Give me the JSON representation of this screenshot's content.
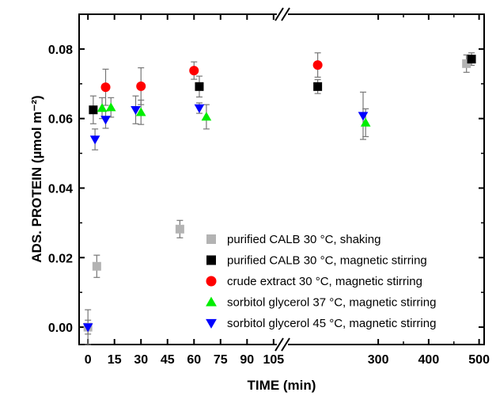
{
  "chart_data": {
    "type": "scatter",
    "xlabel": "TIME (min)",
    "ylabel": "ADS. PROTEIN (µmol m⁻²)",
    "x_axis": {
      "broken": true,
      "segments": [
        {
          "range": [
            -5,
            110
          ],
          "ticks": [
            0,
            15,
            30,
            45,
            60,
            75,
            90,
            105
          ]
        },
        {
          "range": [
            110,
            510
          ],
          "ticks": [
            300,
            400,
            500
          ]
        }
      ]
    },
    "ylim": [
      -0.005,
      0.09
    ],
    "yticks": [
      "0.00",
      "0.02",
      "0.04",
      "0.06",
      "0.08"
    ],
    "grid": false,
    "legend_position": "bottom-right",
    "series": [
      {
        "name": "purified CALB 30 °C, shaking",
        "marker": "square",
        "color": "#b3b3b3",
        "points": [
          {
            "x": 0,
            "y": 0.0,
            "err": 0.005
          },
          {
            "x": 5,
            "y": 0.0175,
            "err": 0.0032
          },
          {
            "x": 52,
            "y": 0.0282,
            "err": 0.0025
          },
          {
            "x": 475,
            "y": 0.0758,
            "err": 0.0025
          }
        ]
      },
      {
        "name": "purified CALB 30 °C, magnetic stirring",
        "marker": "square",
        "color": "#000000",
        "points": [
          {
            "x": 3,
            "y": 0.0625,
            "err": 0.004
          },
          {
            "x": 63,
            "y": 0.0692,
            "err": 0.003
          },
          {
            "x": 180,
            "y": 0.0692,
            "err": 0.002
          },
          {
            "x": 485,
            "y": 0.0771,
            "err": 0.0018
          }
        ]
      },
      {
        "name": "crude extract 30 °C, magnetic stirring",
        "marker": "circle",
        "color": "#ff0000",
        "points": [
          {
            "x": 10,
            "y": 0.069,
            "err": 0.0052
          },
          {
            "x": 30,
            "y": 0.0693,
            "err": 0.0053
          },
          {
            "x": 60,
            "y": 0.0738,
            "err": 0.0025
          },
          {
            "x": 180,
            "y": 0.0754,
            "err": 0.0035
          }
        ]
      },
      {
        "name": "sorbitol glycerol 37 °C, magnetic stirring",
        "marker": "triangle-up",
        "color": "#00ee00",
        "points": [
          {
            "x": 8,
            "y": 0.063,
            "err": 0.003
          },
          {
            "x": 13,
            "y": 0.0632,
            "err": 0.0028
          },
          {
            "x": 30,
            "y": 0.0618,
            "err": 0.0035
          },
          {
            "x": 67,
            "y": 0.0605,
            "err": 0.0035
          },
          {
            "x": 275,
            "y": 0.0588,
            "err": 0.004
          }
        ]
      },
      {
        "name": "sorbitol glycerol 45 °C, magnetic stirring",
        "marker": "triangle-down",
        "color": "#0000ff",
        "points": [
          {
            "x": 0,
            "y": 0.0,
            "err": 0.002
          },
          {
            "x": 4,
            "y": 0.054,
            "err": 0.003
          },
          {
            "x": 10,
            "y": 0.0597,
            "err": 0.0025
          },
          {
            "x": 27,
            "y": 0.0625,
            "err": 0.004
          },
          {
            "x": 63,
            "y": 0.063,
            "err": 0.0015
          },
          {
            "x": 270,
            "y": 0.0608,
            "err": 0.0068
          }
        ]
      }
    ]
  }
}
